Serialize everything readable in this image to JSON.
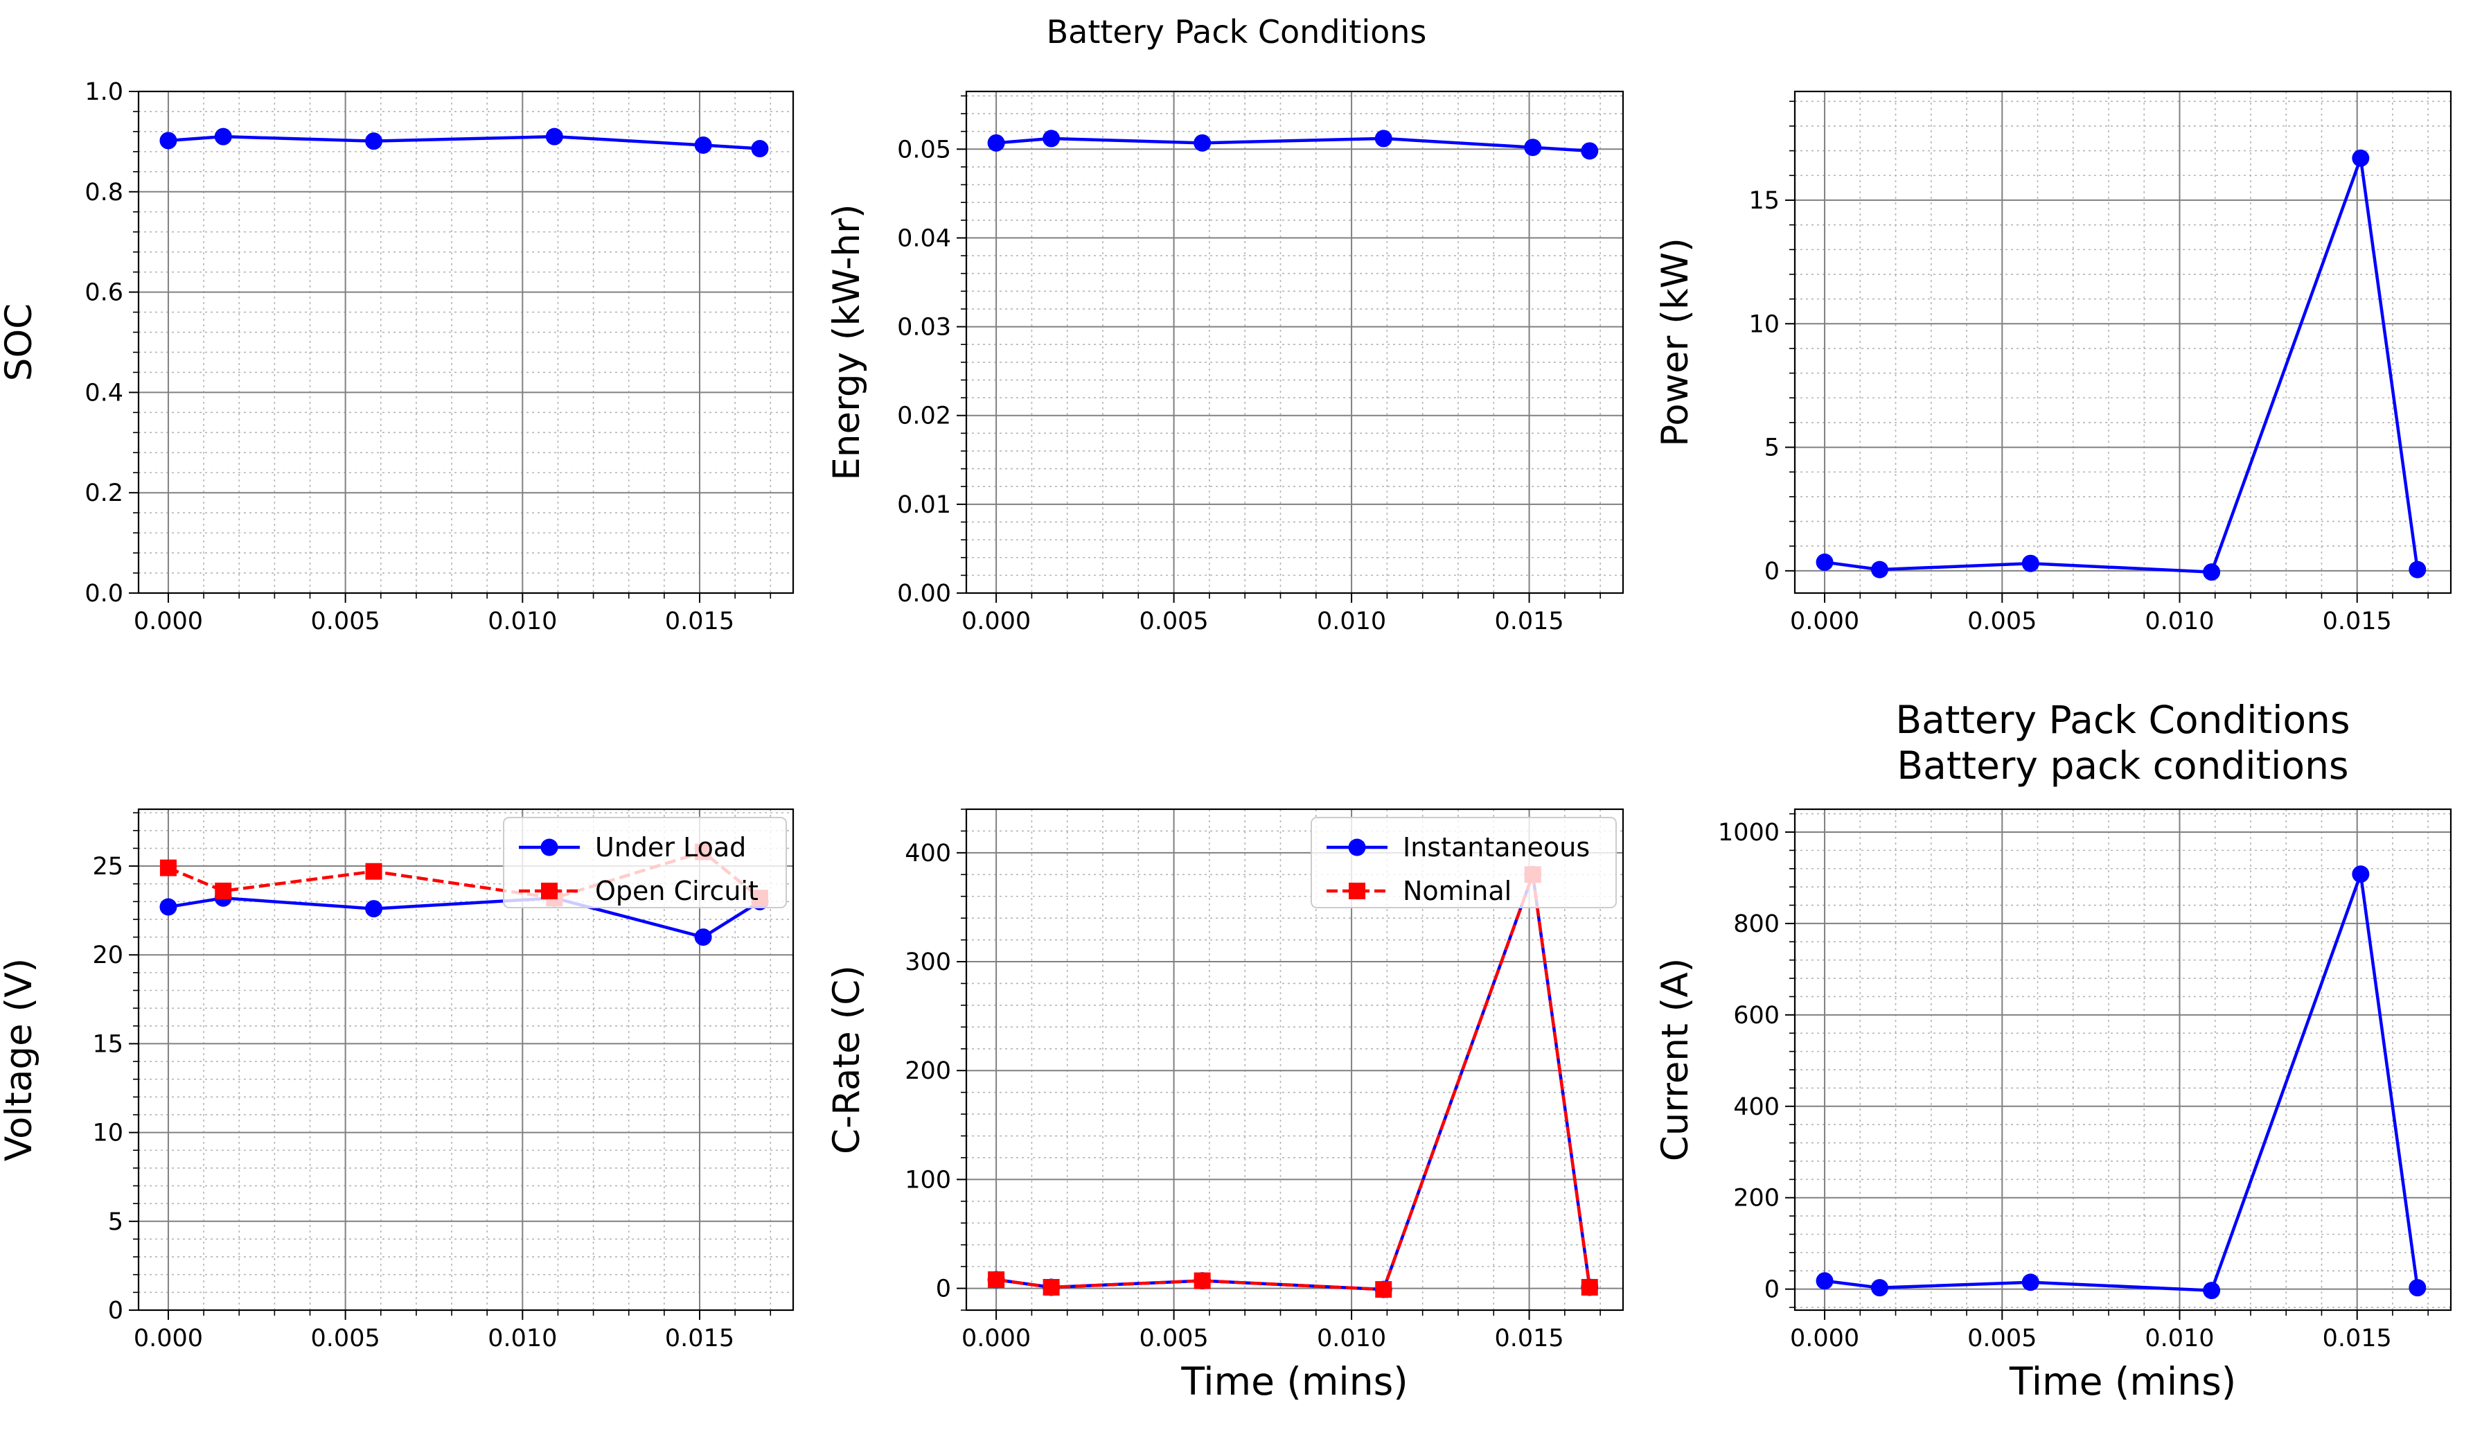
{
  "suptitle": "Battery Pack Conditions",
  "chart_data": [
    {
      "type": "line",
      "panel": "top-left",
      "title": "",
      "xlabel": "",
      "ylabel": "SOC",
      "xlim": [
        -0.00084,
        0.01764
      ],
      "ylim": [
        0,
        1.0
      ],
      "xticks": [
        0,
        0.005,
        0.01,
        0.015
      ],
      "xtick_labels": [
        "0.000",
        "0.005",
        "0.010",
        "0.015"
      ],
      "yticks": [
        0,
        0.2,
        0.4,
        0.6,
        0.8,
        1.0
      ],
      "ytick_labels": [
        "0.0",
        "0.2",
        "0.4",
        "0.6",
        "0.8",
        "1.0"
      ],
      "grid": true,
      "minor_grid": true,
      "x": [
        0.0,
        0.00155,
        0.0058,
        0.0109,
        0.0151,
        0.0167
      ],
      "series": [
        {
          "values": [
            0.902,
            0.91,
            0.901,
            0.91,
            0.893,
            0.886
          ],
          "color": "#0000ff",
          "marker": "circle",
          "dash": "solid"
        }
      ]
    },
    {
      "type": "line",
      "panel": "top-middle",
      "title": "",
      "xlabel": "",
      "ylabel": "Energy (kW-hr)",
      "xlim": [
        -0.00084,
        0.01764
      ],
      "ylim": [
        0,
        0.0565
      ],
      "xticks": [
        0,
        0.005,
        0.01,
        0.015
      ],
      "xtick_labels": [
        "0.000",
        "0.005",
        "0.010",
        "0.015"
      ],
      "yticks": [
        0,
        0.01,
        0.02,
        0.03,
        0.04,
        0.05
      ],
      "ytick_labels": [
        "0.00",
        "0.01",
        "0.02",
        "0.03",
        "0.04",
        "0.05"
      ],
      "grid": true,
      "minor_grid": true,
      "x": [
        0.0,
        0.00155,
        0.0058,
        0.0109,
        0.0151,
        0.0167
      ],
      "series": [
        {
          "values": [
            0.0507,
            0.0512,
            0.0507,
            0.0512,
            0.0502,
            0.0498
          ],
          "color": "#0000ff",
          "marker": "circle",
          "dash": "solid"
        }
      ]
    },
    {
      "type": "line",
      "panel": "top-right",
      "title": "",
      "xlabel": "",
      "ylabel": "Power (kW)",
      "xlim": [
        -0.00084,
        0.01764
      ],
      "ylim": [
        -0.9,
        19.4
      ],
      "xticks": [
        0,
        0.005,
        0.01,
        0.015
      ],
      "xtick_labels": [
        "0.000",
        "0.005",
        "0.010",
        "0.015"
      ],
      "yticks": [
        0,
        5,
        10,
        15
      ],
      "ytick_labels": [
        "0",
        "5",
        "10",
        "15"
      ],
      "grid": true,
      "minor_grid": true,
      "x": [
        0.0,
        0.00155,
        0.0058,
        0.0109,
        0.0151,
        0.0167
      ],
      "series": [
        {
          "values": [
            0.35,
            0.05,
            0.3,
            -0.05,
            16.7,
            0.05
          ],
          "color": "#0000ff",
          "marker": "circle",
          "dash": "solid"
        }
      ]
    },
    {
      "type": "line",
      "panel": "bottom-left",
      "title": "",
      "xlabel": "",
      "ylabel": "Voltage (V)",
      "xlim": [
        -0.00084,
        0.01764
      ],
      "ylim": [
        0,
        28.2
      ],
      "xticks": [
        0,
        0.005,
        0.01,
        0.015
      ],
      "xtick_labels": [
        "0.000",
        "0.005",
        "0.010",
        "0.015"
      ],
      "yticks": [
        0,
        5,
        10,
        15,
        20,
        25
      ],
      "ytick_labels": [
        "0",
        "5",
        "10",
        "15",
        "20",
        "25"
      ],
      "grid": true,
      "minor_grid": true,
      "legend_position": "top-right",
      "x": [
        0.0,
        0.00155,
        0.0058,
        0.0109,
        0.0151,
        0.0167
      ],
      "series": [
        {
          "name": "Under Load",
          "values": [
            22.7,
            23.2,
            22.6,
            23.2,
            21.0,
            23.0
          ],
          "color": "#0000ff",
          "marker": "circle",
          "dash": "solid"
        },
        {
          "name": "Open Circuit",
          "values": [
            24.9,
            23.6,
            24.7,
            23.2,
            25.8,
            23.2
          ],
          "color": "#ff0000",
          "marker": "square",
          "dash": "dashed"
        }
      ]
    },
    {
      "type": "line",
      "panel": "bottom-middle",
      "title": "",
      "xlabel": "Time (mins)",
      "ylabel": "C-Rate (C)",
      "xlim": [
        -0.00084,
        0.01764
      ],
      "ylim": [
        -20,
        440
      ],
      "xticks": [
        0,
        0.005,
        0.01,
        0.015
      ],
      "xtick_labels": [
        "0.000",
        "0.005",
        "0.010",
        "0.015"
      ],
      "yticks": [
        0,
        100,
        200,
        300,
        400
      ],
      "ytick_labels": [
        "0",
        "100",
        "200",
        "300",
        "400"
      ],
      "grid": true,
      "minor_grid": true,
      "legend_position": "top-right",
      "x": [
        0.0,
        0.00155,
        0.0058,
        0.0109,
        0.0151,
        0.0167
      ],
      "series": [
        {
          "name": "Instantaneous",
          "values": [
            8,
            1,
            7,
            -1,
            380,
            1
          ],
          "color": "#0000ff",
          "marker": "circle",
          "dash": "solid"
        },
        {
          "name": "Nominal",
          "values": [
            8,
            1,
            7,
            -1,
            380,
            1
          ],
          "color": "#ff0000",
          "marker": "square",
          "dash": "dashed"
        }
      ]
    },
    {
      "type": "line",
      "panel": "bottom-right",
      "title": "Battery Pack Conditions\nBattery pack conditions",
      "xlabel": "Time (mins)",
      "ylabel": "Current (A)",
      "xlim": [
        -0.00084,
        0.01764
      ],
      "ylim": [
        -46,
        1050
      ],
      "xticks": [
        0,
        0.005,
        0.01,
        0.015
      ],
      "xtick_labels": [
        "0.000",
        "0.005",
        "0.010",
        "0.015"
      ],
      "yticks": [
        0,
        200,
        400,
        600,
        800,
        1000
      ],
      "ytick_labels": [
        "0",
        "200",
        "400",
        "600",
        "800",
        "1000"
      ],
      "grid": true,
      "minor_grid": true,
      "x": [
        0.0,
        0.00155,
        0.0058,
        0.0109,
        0.0151,
        0.0167
      ],
      "series": [
        {
          "values": [
            18,
            3,
            15,
            -3,
            908,
            3
          ],
          "color": "#0000ff",
          "marker": "circle",
          "dash": "solid"
        }
      ]
    }
  ]
}
